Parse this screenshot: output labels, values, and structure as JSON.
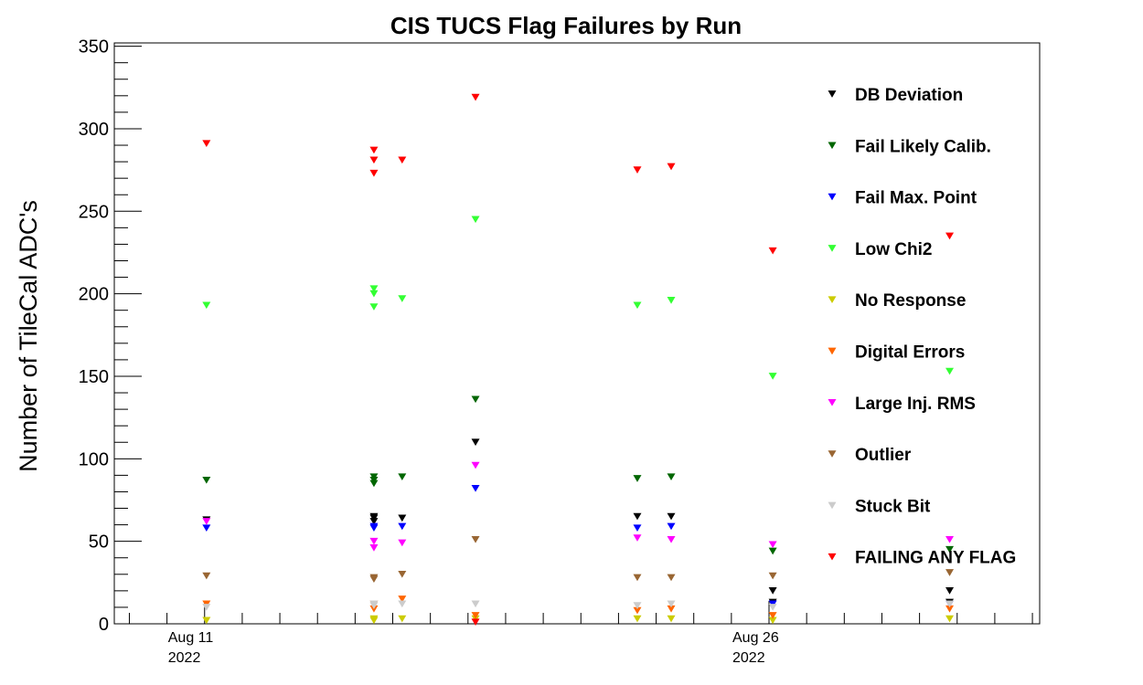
{
  "chart_data": {
    "type": "scatter",
    "title": "CIS TUCS Flag Failures by Run",
    "xlabel": "",
    "ylabel": "Number of TileCal ADC's",
    "ylim": [
      0,
      352
    ],
    "yticks": [
      0,
      50,
      100,
      150,
      200,
      250,
      300,
      350
    ],
    "xlim_days": [
      8.6,
      33.2
    ],
    "xtick_labels": [
      {
        "day": 11,
        "line1": "Aug 11",
        "line2": "2022"
      },
      {
        "day": 26,
        "line1": "Aug 26",
        "line2": "2022"
      }
    ],
    "marker": "triangle-down",
    "legend_position": "right",
    "grid": false,
    "series": [
      {
        "name": "DB Deviation",
        "color": "#000000",
        "points": [
          [
            11.05,
            63
          ],
          [
            15.5,
            64
          ],
          [
            15.5,
            65
          ],
          [
            15.5,
            62
          ],
          [
            16.25,
            64
          ],
          [
            18.2,
            110
          ],
          [
            22.5,
            65
          ],
          [
            23.4,
            65
          ],
          [
            26.1,
            20
          ],
          [
            26.1,
            13
          ],
          [
            30.8,
            20
          ],
          [
            30.8,
            13
          ]
        ]
      },
      {
        "name": "Fail Likely Calib.",
        "color": "#006600",
        "points": [
          [
            11.05,
            87
          ],
          [
            15.5,
            89
          ],
          [
            15.5,
            87
          ],
          [
            15.5,
            85
          ],
          [
            16.25,
            89
          ],
          [
            18.2,
            136
          ],
          [
            22.5,
            88
          ],
          [
            23.4,
            89
          ],
          [
            26.1,
            44
          ],
          [
            30.8,
            45
          ]
        ]
      },
      {
        "name": "Fail Max. Point",
        "color": "#0000ff",
        "points": [
          [
            11.05,
            58
          ],
          [
            15.5,
            59
          ],
          [
            15.5,
            58
          ],
          [
            16.25,
            59
          ],
          [
            18.2,
            82
          ],
          [
            22.5,
            58
          ],
          [
            23.4,
            59
          ],
          [
            26.1,
            12
          ],
          [
            30.8,
            12
          ]
        ]
      },
      {
        "name": "Low Chi2",
        "color": "#33ff33",
        "points": [
          [
            11.05,
            193
          ],
          [
            15.5,
            203
          ],
          [
            15.5,
            200
          ],
          [
            15.5,
            192
          ],
          [
            16.25,
            197
          ],
          [
            18.2,
            245
          ],
          [
            22.5,
            193
          ],
          [
            23.4,
            196
          ],
          [
            26.1,
            150
          ],
          [
            30.8,
            153
          ]
        ]
      },
      {
        "name": "No Response",
        "color": "#cccc00",
        "points": [
          [
            11.05,
            2
          ],
          [
            15.5,
            3
          ],
          [
            15.5,
            2
          ],
          [
            16.25,
            3
          ],
          [
            18.2,
            3
          ],
          [
            22.5,
            3
          ],
          [
            23.4,
            3
          ],
          [
            26.1,
            2
          ],
          [
            30.8,
            3
          ]
        ]
      },
      {
        "name": "Digital Errors",
        "color": "#ff6600",
        "points": [
          [
            11.05,
            12
          ],
          [
            15.5,
            12
          ],
          [
            15.5,
            9
          ],
          [
            16.25,
            15
          ],
          [
            18.2,
            5
          ],
          [
            22.5,
            8
          ],
          [
            23.4,
            9
          ],
          [
            26.1,
            5
          ],
          [
            30.8,
            9
          ]
        ]
      },
      {
        "name": "Large Inj. RMS",
        "color": "#ff00ff",
        "points": [
          [
            11.05,
            62
          ],
          [
            15.5,
            50
          ],
          [
            15.5,
            46
          ],
          [
            16.25,
            49
          ],
          [
            18.2,
            96
          ],
          [
            22.5,
            52
          ],
          [
            23.4,
            51
          ],
          [
            26.1,
            48
          ],
          [
            30.8,
            51
          ]
        ]
      },
      {
        "name": "Outlier",
        "color": "#996633",
        "points": [
          [
            11.05,
            29
          ],
          [
            15.5,
            28
          ],
          [
            15.5,
            27
          ],
          [
            16.25,
            30
          ],
          [
            18.2,
            51
          ],
          [
            22.5,
            28
          ],
          [
            23.4,
            28
          ],
          [
            26.1,
            29
          ],
          [
            30.8,
            31
          ]
        ]
      },
      {
        "name": "Stuck Bit",
        "color": "#cccccc",
        "points": [
          [
            11.05,
            10
          ],
          [
            15.5,
            12
          ],
          [
            15.5,
            11
          ],
          [
            16.25,
            12
          ],
          [
            18.2,
            12
          ],
          [
            22.5,
            11
          ],
          [
            23.4,
            12
          ],
          [
            26.1,
            10
          ],
          [
            30.8,
            12
          ]
        ]
      },
      {
        "name": "FAILING ANY FLAG",
        "color": "#ff0000",
        "points": [
          [
            11.05,
            291
          ],
          [
            15.5,
            287
          ],
          [
            15.5,
            281
          ],
          [
            15.5,
            273
          ],
          [
            16.25,
            281
          ],
          [
            18.2,
            319
          ],
          [
            18.2,
            1
          ],
          [
            22.5,
            275
          ],
          [
            23.4,
            277
          ],
          [
            26.1,
            226
          ],
          [
            30.8,
            235
          ]
        ]
      }
    ]
  }
}
